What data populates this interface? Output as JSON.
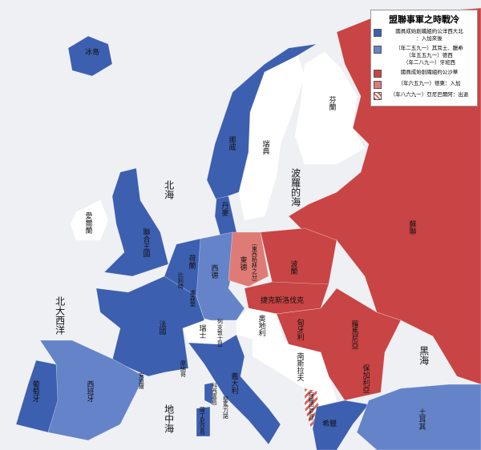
{
  "title": "盟聯事軍之時戰冷",
  "legend": [
    {
      "color": "#3d5fb0",
      "lines": [
        "國員成始創織組約公洋西大北",
        "：入加來後"
      ]
    },
    {
      "color": "#6583c8",
      "lines": [
        "（年二五九一）其耳土、臘希",
        "（年五五九一）德西",
        "（年二八九一）牙班西"
      ]
    },
    {
      "color": "#c94444",
      "lines": [
        "國員成始創織組約公沙華"
      ]
    },
    {
      "color": "#de7b76",
      "lines": [
        "（年六五九一）德東：入加"
      ]
    },
    {
      "color": "hatch",
      "lines": [
        "（年八六九一）亞尼巴爾阿：出退"
      ]
    }
  ],
  "colors": {
    "nato_founder": "#3d5fb0",
    "nato_later": "#6583c8",
    "warsaw": "#c94444",
    "east_germany": "#de7b76",
    "neutral": "#ffffff",
    "sea": "#eef0f3"
  },
  "labels": {
    "iceland": "冰島",
    "norway": "挪威",
    "sweden": "瑞典",
    "finland": "芬蘭",
    "ussr": "蘇聯",
    "north_sea": "北海",
    "baltic": "波羅的海",
    "ireland": "愛爾蘭",
    "uk": "聯合王國",
    "denmark": "丹麥",
    "netherlands": "荷蘭",
    "belgium": "比利時",
    "luxembourg": "盧森堡",
    "west_germany": "西德",
    "east_germany": "東德",
    "berlin": "（東西柏林之分）",
    "poland": "波蘭",
    "czechoslovakia": "捷克斯洛伐克",
    "austria": "奧地利",
    "hungary": "匈牙利",
    "romania": "羅馬尼亞",
    "bulgaria": "保加利亞",
    "yugoslavia": "南斯拉夫",
    "albania": "阿爾巴尼亞",
    "greece": "希臘",
    "turkey": "土耳其",
    "black_sea": "黑海",
    "switzerland": "瑞士",
    "liechtenstein": "列支敦士登",
    "france": "法國",
    "spain": "西班牙",
    "portugal": "葡萄牙",
    "andorra": "安道爾",
    "monaco": "摩納哥",
    "italy": "義大利",
    "san_marino": "聖馬力諾",
    "corsica": "科西嘉島",
    "sardinia": "薩丁尼亞島",
    "mediterranean": "地中海",
    "atlantic": "北大西洋"
  }
}
